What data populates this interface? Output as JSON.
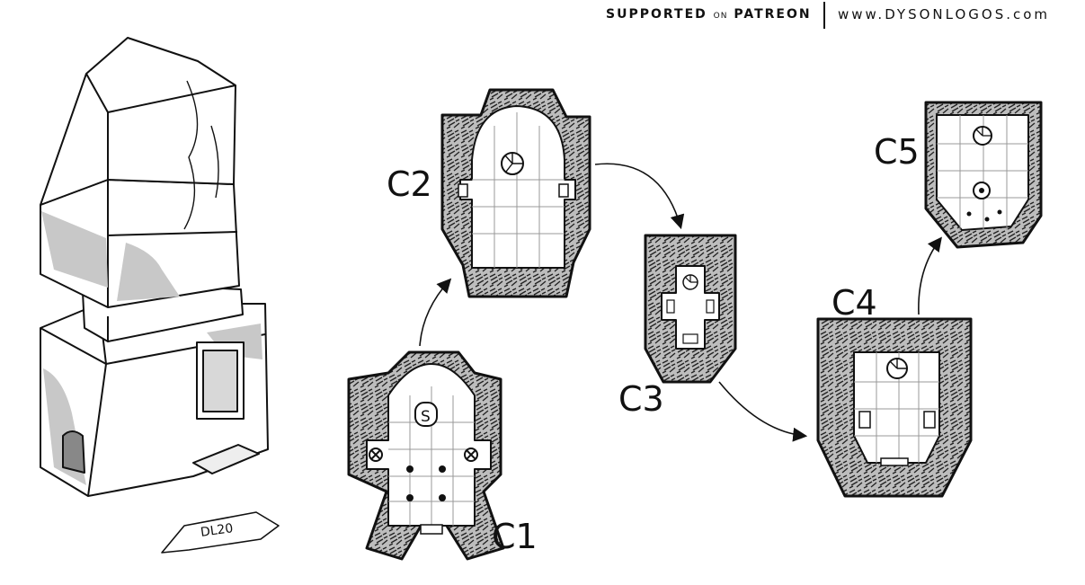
{
  "header": {
    "supported": "SUPPORTED",
    "on": "ON",
    "patreon": "PATREON",
    "website": "www.DYSONLOGOS.com"
  },
  "levels": {
    "c1": "C1",
    "c2": "C2",
    "c3": "C3",
    "c4": "C4",
    "c5": "C5"
  },
  "signature": "DL20",
  "map_symbols": {
    "stair": "S"
  },
  "colors": {
    "ink": "#111111",
    "stone_fill": "#bdbdbd",
    "shadow_fill": "#c8c8c8",
    "paper": "#ffffff"
  }
}
